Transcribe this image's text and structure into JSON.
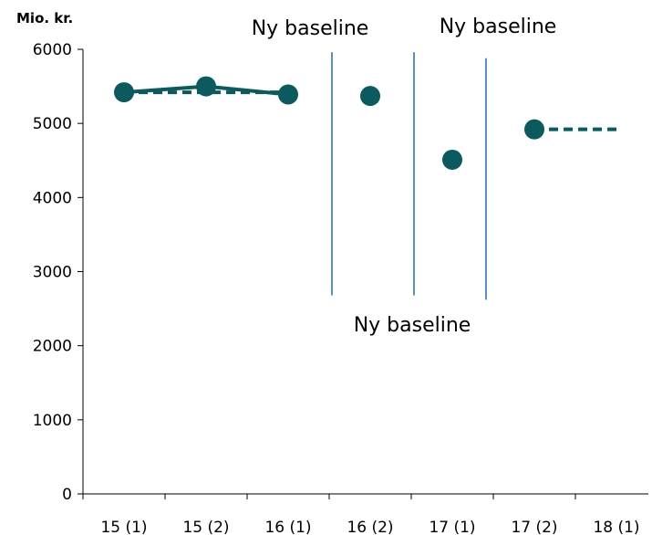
{
  "chart_data": {
    "type": "line",
    "ylabel": "Mio. kr.",
    "xlabel": "",
    "categories": [
      "15 (1)",
      "15 (2)",
      "16 (1)",
      "16 (2)",
      "17 (1)",
      "17 (2)",
      "18 (1)"
    ],
    "ylim": [
      0,
      6000
    ],
    "yticks": [
      0,
      1000,
      2000,
      3000,
      4000,
      5000,
      6000
    ],
    "grid": false,
    "legend": "none",
    "series": [
      {
        "style": "solid-line-with-markers",
        "points": [
          {
            "x": "15 (1)",
            "y": 5420
          },
          {
            "x": "15 (2)",
            "y": 5500
          },
          {
            "x": "16 (1)",
            "y": 5390
          }
        ]
      },
      {
        "style": "dashed-line",
        "points": [
          {
            "x": "15 (1)",
            "y": 5420
          },
          {
            "x": "16 (1)",
            "y": 5420
          }
        ]
      },
      {
        "style": "markers-only",
        "points": [
          {
            "x": "16 (2)",
            "y": 5370
          },
          {
            "x": "17 (1)",
            "y": 4510
          },
          {
            "x": "17 (2)",
            "y": 4920
          }
        ]
      },
      {
        "style": "dashed-line",
        "points": [
          {
            "x": "17 (2)",
            "y": 4920
          },
          {
            "x": "18 (1)",
            "y": 4920
          }
        ]
      }
    ],
    "baseline_markers": [
      {
        "between": [
          "16 (1)",
          "16 (2)"
        ],
        "label": "Ny baseline"
      },
      {
        "between": [
          "16 (2)",
          "17 (1)"
        ],
        "label": "Ny baseline"
      },
      {
        "between": [
          "17 (1)",
          "17 (2)"
        ],
        "label": "Ny baseline"
      }
    ],
    "colors": {
      "series": "#0b5a5e",
      "baseline": "#5b8fc9",
      "axis": "#000000"
    }
  }
}
